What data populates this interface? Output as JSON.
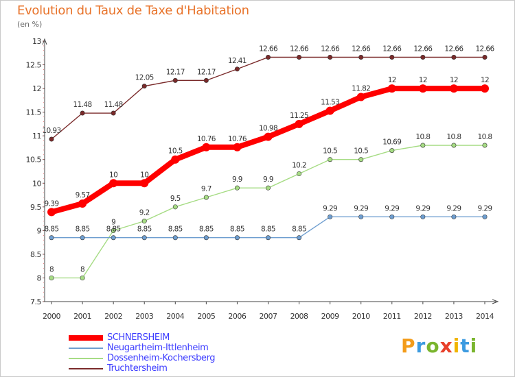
{
  "header": {
    "title": "Evolution du Taux de Taxe d'Habitation",
    "subtitle": "(en %)"
  },
  "logo": {
    "text": "Proxiti",
    "letters": [
      {
        "ch": "P",
        "color": "#f39c1a"
      },
      {
        "ch": "r",
        "color": "#3d9be0"
      },
      {
        "ch": "o",
        "color": "#7ab52e"
      },
      {
        "ch": "x",
        "color": "#e8402a"
      },
      {
        "ch": "i",
        "color": "#f0b400"
      },
      {
        "ch": "t",
        "color": "#3d9be0"
      },
      {
        "ch": "i",
        "color": "#7ab52e"
      }
    ]
  },
  "chart_data": {
    "type": "line",
    "title": "Evolution du Taux de Taxe d'Habitation",
    "subtitle": "(en %)",
    "x": [
      "2000",
      "2001",
      "2002",
      "2003",
      "2004",
      "2005",
      "2006",
      "2007",
      "2008",
      "2009",
      "2010",
      "2011",
      "2012",
      "2013",
      "2014"
    ],
    "ylim": [
      7.5,
      13
    ],
    "yticks": [
      "7.5",
      "8",
      "8.5",
      "9",
      "9.5",
      "10",
      "10.5",
      "11",
      "11.5",
      "12",
      "12.5",
      "13"
    ],
    "grid": false,
    "legend_position": "bottom-left",
    "series": [
      {
        "name": "SCHNERSHEIM",
        "color": "#ff0000",
        "values": [
          9.39,
          9.57,
          10,
          10,
          10.5,
          10.76,
          10.76,
          10.98,
          11.25,
          11.53,
          11.82,
          12,
          12,
          12,
          12
        ],
        "labels": [
          "9.39",
          "9.57",
          "10",
          "10",
          "10.5",
          "10.76",
          "10.76",
          "10.98",
          "11.25",
          "11.53",
          "11.82",
          "12",
          "12",
          "12",
          "12"
        ]
      },
      {
        "name": "Neugartheim-Ittlenheim",
        "color": "#6e9ed0",
        "values": [
          8.85,
          8.85,
          8.85,
          8.85,
          8.85,
          8.85,
          8.85,
          8.85,
          8.85,
          9.29,
          9.29,
          9.29,
          9.29,
          9.29,
          9.29
        ],
        "labels": [
          "8.85",
          "8.85",
          "8.85",
          "8.85",
          "8.85",
          "8.85",
          "8.85",
          "8.85",
          "8.85",
          "9.29",
          "9.29",
          "9.29",
          "9.29",
          "9.29",
          "9.29"
        ]
      },
      {
        "name": "Dossenheim-Kochersberg",
        "color": "#a6dc84",
        "values": [
          8,
          8,
          9,
          9.2,
          9.5,
          9.7,
          9.9,
          9.9,
          10.2,
          10.5,
          10.5,
          10.69,
          10.8,
          10.8,
          10.8
        ],
        "labels": [
          "8",
          "8",
          "9",
          "9.2",
          "9.5",
          "9.7",
          "9.9",
          "9.9",
          "10.2",
          "10.5",
          "10.5",
          "10.69",
          "10.8",
          "10.8",
          "10.8"
        ]
      },
      {
        "name": "Truchtersheim",
        "color": "#7a2a2a",
        "values": [
          10.93,
          11.48,
          11.48,
          12.05,
          12.17,
          12.17,
          12.41,
          12.66,
          12.66,
          12.66,
          12.66,
          12.66,
          12.66,
          12.66,
          12.66
        ],
        "labels": [
          "10.93",
          "11.48",
          "11.48",
          "12.05",
          "12.17",
          "12.17",
          "12.41",
          "12.66",
          "12.66",
          "12.66",
          "12.66",
          "12.66",
          "12.66",
          "12.66",
          "12.66"
        ]
      }
    ]
  }
}
